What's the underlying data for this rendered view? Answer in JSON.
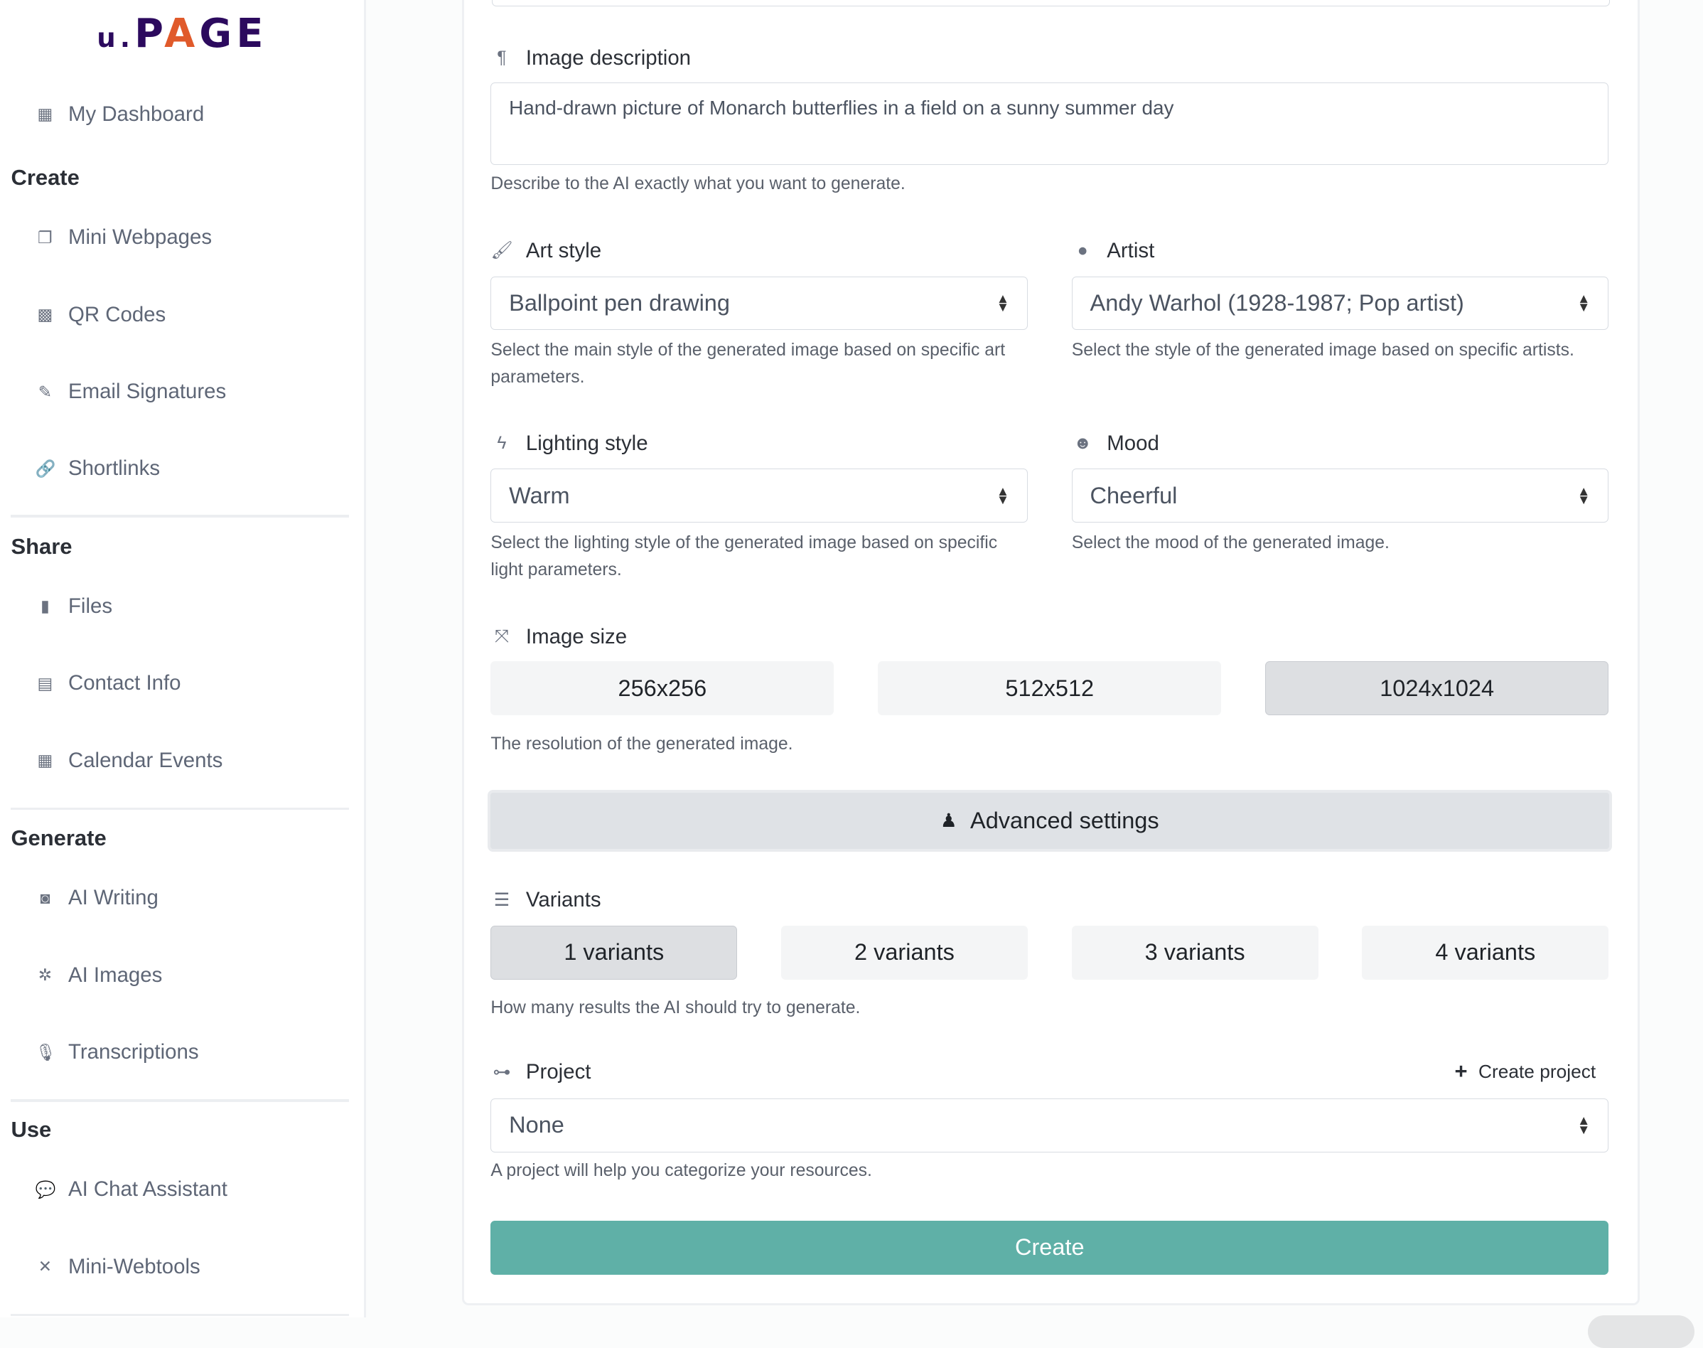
{
  "logo": {
    "text": "u.PAGE"
  },
  "sidebar": {
    "dashboard": "My Dashboard",
    "sections": [
      {
        "title": "Create",
        "items": [
          {
            "label": "Mini Webpages",
            "icon": "window-icon"
          },
          {
            "label": "QR Codes",
            "icon": "qrcode-icon"
          },
          {
            "label": "Email Signatures",
            "icon": "signature-icon"
          },
          {
            "label": "Shortlinks",
            "icon": "link-icon"
          }
        ]
      },
      {
        "title": "Share",
        "items": [
          {
            "label": "Files",
            "icon": "file-icon"
          },
          {
            "label": "Contact Info",
            "icon": "id-card-icon"
          },
          {
            "label": "Calendar Events",
            "icon": "calendar-icon"
          }
        ]
      },
      {
        "title": "Generate",
        "items": [
          {
            "label": "AI Writing",
            "icon": "robot-icon"
          },
          {
            "label": "AI Images",
            "icon": "images-icon"
          },
          {
            "label": "Transcriptions",
            "icon": "microphone-icon"
          }
        ]
      },
      {
        "title": "Use",
        "items": [
          {
            "label": "AI Chat Assistant",
            "icon": "chat-icon"
          },
          {
            "label": "Mini-Webtools",
            "icon": "tools-icon"
          }
        ]
      }
    ]
  },
  "form": {
    "description": {
      "label": "Image description",
      "value": "Hand-drawn picture of Monarch butterflies in a field on a sunny summer day",
      "help": "Describe to the AI exactly what you want to generate."
    },
    "art_style": {
      "label": "Art style",
      "value": "Ballpoint pen drawing",
      "help": "Select the main style of the generated image based on specific art parameters."
    },
    "artist": {
      "label": "Artist",
      "value": "Andy Warhol (1928-1987; Pop artist)",
      "help": "Select the style of the generated image based on specific artists."
    },
    "lighting": {
      "label": "Lighting style",
      "value": "Warm",
      "help": "Select the lighting style of the generated image based on specific light parameters."
    },
    "mood": {
      "label": "Mood",
      "value": "Cheerful",
      "help": "Select the mood of the generated image."
    },
    "size": {
      "label": "Image size",
      "options": [
        "256x256",
        "512x512",
        "1024x1024"
      ],
      "selected": "1024x1024",
      "help": "The resolution of the generated image."
    },
    "advanced": "Advanced settings",
    "variants": {
      "label": "Variants",
      "options": [
        "1 variants",
        "2 variants",
        "3 variants",
        "4 variants"
      ],
      "selected": "1 variants",
      "help": "How many results the AI should try to generate."
    },
    "project": {
      "label": "Project",
      "create": "Create project",
      "value": "None",
      "help": "A project will help you categorize your resources."
    },
    "submit": "Create"
  },
  "colors": {
    "accent": "#5fb0a7",
    "logo": "#2c0a5e"
  }
}
